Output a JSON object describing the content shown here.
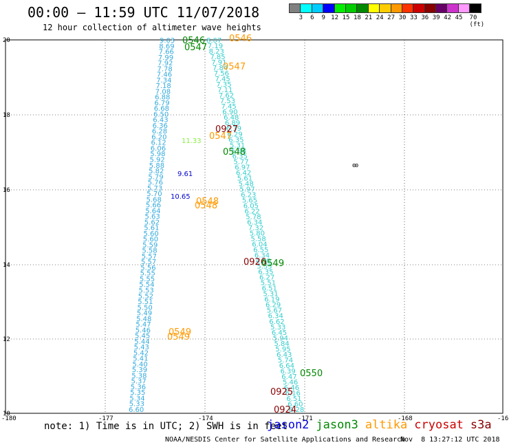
{
  "header": {
    "title": "00:00 – 11:59 UTC 11/07/2018",
    "subtitle": "12 hour collection of altimeter wave heights"
  },
  "legend": {
    "colors": [
      "#808080",
      "#00ffff",
      "#00ccff",
      "#0000ff",
      "#00ee00",
      "#00cc00",
      "#008800",
      "#ffff00",
      "#ffcc00",
      "#ff9900",
      "#ff3300",
      "#cc0000",
      "#880000",
      "#660066",
      "#cc33cc",
      "#ff99ff",
      "#000000"
    ],
    "labels": [
      "3",
      "6",
      "9",
      "12",
      "15",
      "18",
      "21",
      "24",
      "27",
      "30",
      "33",
      "36",
      "39",
      "42",
      "45",
      "70 (ft)"
    ]
  },
  "axes": {
    "lon_ticks": [
      "-180",
      "-177",
      "-174",
      "-171",
      "-168",
      "-16"
    ],
    "lat_ticks": [
      "20",
      "18",
      "16",
      "14",
      "12",
      "10"
    ]
  },
  "tracks": {
    "t1_values": [
      "9.03",
      "8.69",
      "7.66",
      "7.99",
      "7.92",
      "7.78",
      "7.46",
      "7.34",
      "7.18",
      "7.08",
      "6.88",
      "6.79",
      "6.68",
      "6.50",
      "6.43",
      "6.36",
      "6.28",
      "6.20",
      "6.12",
      "6.06",
      "5.98",
      "5.92",
      "5.88",
      "5.82",
      "5.79",
      "5.76",
      "5.73",
      "5.70",
      "5.68",
      "5.66",
      "5.64",
      "5.63",
      "5.62",
      "5.61",
      "5.60",
      "5.60",
      "5.59",
      "5.58",
      "5.57",
      "5.57",
      "5.56",
      "5.55",
      "5.55",
      "5.54",
      "5.53",
      "5.52",
      "5.51",
      "5.50",
      "5.49",
      "5.48",
      "5.47",
      "5.46",
      "5.45",
      "5.44",
      "5.43",
      "5.42",
      "5.41",
      "5.40",
      "5.39",
      "5.38",
      "5.37",
      "5.36",
      "5.35",
      "5.34",
      "5.33",
      "6.60"
    ],
    "t2_values": [
      "8.07",
      "7.19",
      "8.23",
      "7.85",
      "7.91",
      "7.84",
      "7.56",
      "7.45",
      "7.35",
      "7.11",
      "7.62",
      "7.53",
      "7.45",
      "6.90",
      "6.48",
      "6.89",
      "6.39",
      "6.29",
      "6.35",
      "5.31",
      "5.98",
      "6.35",
      "5.77",
      "6.97",
      "6.42",
      "5.61",
      "5.48",
      "5.97",
      "6.23",
      "5.65",
      "6.05",
      "6.22",
      "5.78",
      "6.34",
      "7.32",
      "5.80",
      "5.58",
      "6.04",
      "6.55",
      "6.34",
      "4.90",
      "5.55",
      "6.35",
      "6.27",
      "5.51",
      "6.51",
      "5.31",
      "6.19",
      "6.29",
      "5.67",
      "6.34",
      "6.62",
      "5.33",
      "6.45",
      "5.94",
      "5.84",
      "5.95",
      "6.43",
      "5.74",
      "6.64",
      "6.39",
      "6.47",
      "5.46",
      "6.46",
      "6.16",
      "6.51",
      "6.60",
      "6.28"
    ],
    "labels_t1": [
      "0546",
      "0547",
      "0547",
      "0927",
      "0547",
      "0548",
      "0548",
      "0548",
      "0549",
      "0549"
    ],
    "labels_t2": [
      "0546",
      "0547",
      "0926",
      "0549",
      "0925",
      "0924",
      "0550"
    ],
    "special": [
      "9.61",
      "10.65",
      "11.33"
    ]
  },
  "footer": {
    "note": "note: 1) Time is in UTC; 2) SWH is in feet",
    "satellites": [
      {
        "name": "jason2",
        "color": "#0000dd"
      },
      {
        "name": "jason3",
        "color": "#008800"
      },
      {
        "name": "altika",
        "color": "#ff9900"
      },
      {
        "name": "cryosat",
        "color": "#cc0000"
      },
      {
        "name": "s3a",
        "color": "#880000"
      }
    ],
    "credit": "NOAA/NESDIS Center for Satellite Applications and Research",
    "timestamp": "Nov  8 13:27:12 UTC 2018"
  }
}
